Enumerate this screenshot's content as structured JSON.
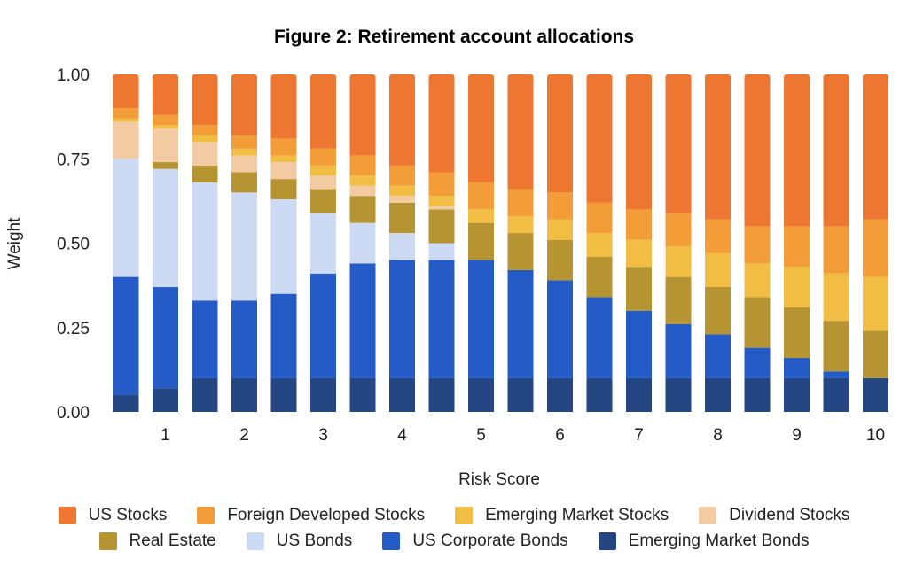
{
  "chart_data": {
    "type": "bar",
    "stacked": true,
    "title": "Figure 2: Retirement account allocations",
    "xlabel": "Risk Score",
    "ylabel": "Weight",
    "ylim": [
      0,
      1
    ],
    "yticks": [
      "0.00",
      "0.25",
      "0.50",
      "0.75",
      "1.00"
    ],
    "xticks": [
      "1",
      "2",
      "3",
      "4",
      "5",
      "6",
      "7",
      "8",
      "9",
      "10"
    ],
    "x": [
      0.5,
      1,
      1.5,
      2,
      2.5,
      3,
      3.5,
      4,
      4.5,
      5,
      5.5,
      6,
      6.5,
      7,
      7.5,
      8,
      8.5,
      9,
      9.5,
      10
    ],
    "grid": false,
    "legend_placement": "bottom",
    "series": [
      {
        "name": "Emerging Market Bonds",
        "color": "#244783",
        "values": [
          0.05,
          0.07,
          0.1,
          0.1,
          0.1,
          0.1,
          0.1,
          0.1,
          0.1,
          0.1,
          0.1,
          0.1,
          0.1,
          0.1,
          0.1,
          0.1,
          0.1,
          0.1,
          0.1,
          0.1
        ]
      },
      {
        "name": "US Corporate Bonds",
        "color": "#245BC7",
        "values": [
          0.35,
          0.3,
          0.23,
          0.23,
          0.25,
          0.31,
          0.34,
          0.35,
          0.35,
          0.35,
          0.32,
          0.29,
          0.24,
          0.2,
          0.16,
          0.13,
          0.09,
          0.06,
          0.02,
          0.0
        ]
      },
      {
        "name": "US Bonds",
        "color": "#CCDBF3",
        "values": [
          0.35,
          0.35,
          0.35,
          0.32,
          0.28,
          0.18,
          0.12,
          0.08,
          0.05,
          0,
          0,
          0,
          0,
          0,
          0,
          0,
          0,
          0,
          0,
          0
        ]
      },
      {
        "name": "Real Estate",
        "color": "#B79432",
        "values": [
          0.0,
          0.02,
          0.05,
          0.06,
          0.06,
          0.07,
          0.08,
          0.09,
          0.1,
          0.11,
          0.11,
          0.12,
          0.12,
          0.13,
          0.14,
          0.14,
          0.15,
          0.15,
          0.15,
          0.14
        ]
      },
      {
        "name": "Dividend Stocks",
        "color": "#F2CBA2",
        "values": [
          0.11,
          0.1,
          0.07,
          0.05,
          0.05,
          0.04,
          0.03,
          0.02,
          0.01,
          0,
          0,
          0,
          0,
          0,
          0,
          0,
          0,
          0,
          0,
          0
        ]
      },
      {
        "name": "Emerging Market Stocks",
        "color": "#F1BD42",
        "values": [
          0.01,
          0.01,
          0.02,
          0.02,
          0.02,
          0.03,
          0.03,
          0.03,
          0.03,
          0.04,
          0.05,
          0.06,
          0.07,
          0.08,
          0.09,
          0.1,
          0.1,
          0.12,
          0.14,
          0.16
        ]
      },
      {
        "name": "Foreign Developed Stocks",
        "color": "#F29D38",
        "values": [
          0.03,
          0.03,
          0.03,
          0.04,
          0.05,
          0.05,
          0.06,
          0.06,
          0.07,
          0.08,
          0.08,
          0.08,
          0.09,
          0.09,
          0.1,
          0.1,
          0.11,
          0.12,
          0.14,
          0.17
        ]
      },
      {
        "name": "US Stocks",
        "color": "#ED7631",
        "values": [
          0.1,
          0.12,
          0.15,
          0.18,
          0.19,
          0.22,
          0.24,
          0.27,
          0.29,
          0.32,
          0.34,
          0.35,
          0.38,
          0.4,
          0.41,
          0.43,
          0.45,
          0.45,
          0.45,
          0.43
        ]
      }
    ],
    "legend_rows": [
      [
        "US Stocks",
        "Foreign Developed Stocks",
        "Emerging Market Stocks",
        "Dividend Stocks"
      ],
      [
        "Real Estate",
        "US Bonds",
        "US Corporate Bonds",
        "Emerging Market Bonds"
      ]
    ]
  }
}
